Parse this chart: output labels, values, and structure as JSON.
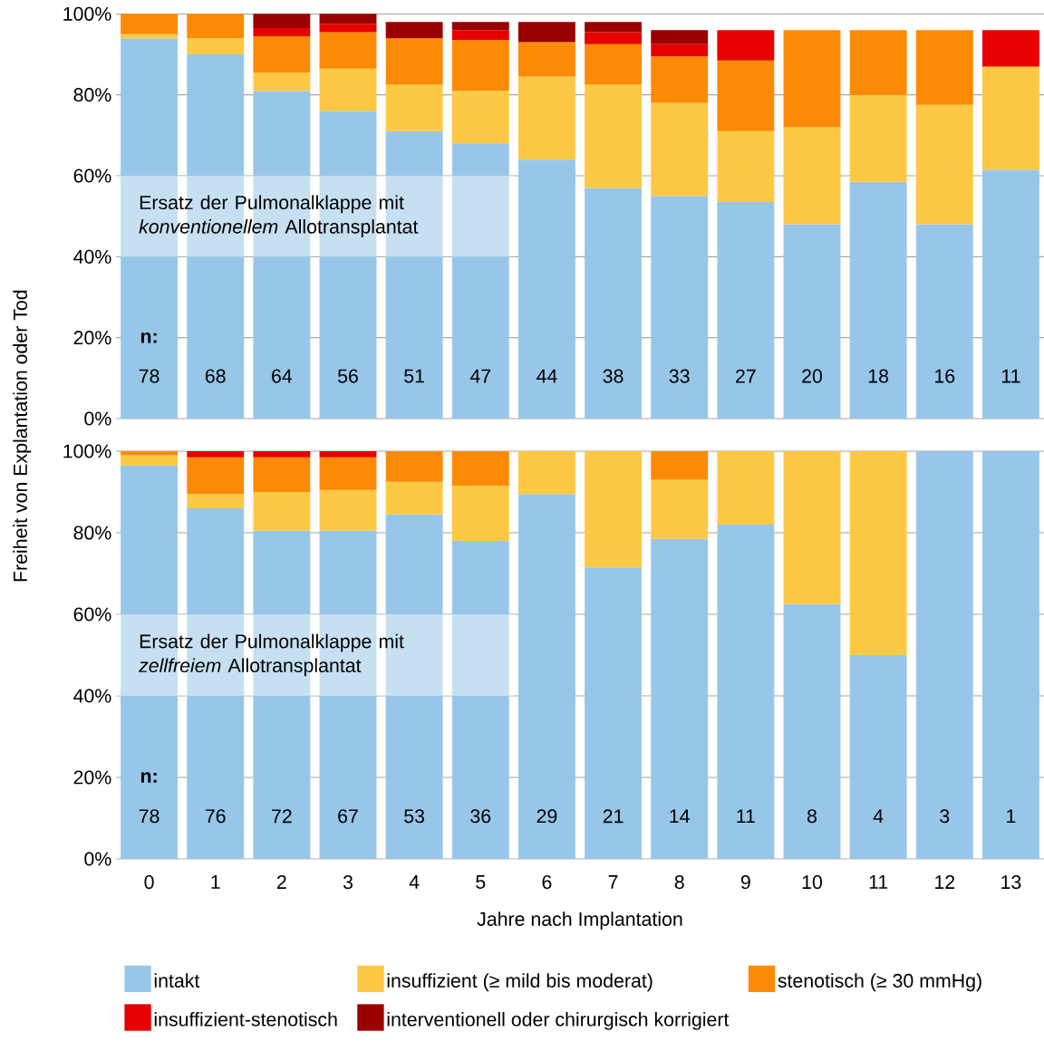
{
  "chart_data": [
    {
      "type": "bar",
      "stacked": true,
      "categories": [
        "0",
        "1",
        "2",
        "3",
        "4",
        "5",
        "6",
        "7",
        "8",
        "9",
        "10",
        "11",
        "12",
        "13"
      ],
      "ylabel": "Freiheit von Explantation oder Tod",
      "ylim": [
        0,
        100
      ],
      "yticks": [
        {
          "value": 0,
          "label": "0%"
        },
        {
          "value": 20,
          "label": "20%"
        },
        {
          "value": 40,
          "label": "40%"
        },
        {
          "value": 60,
          "label": "60%"
        },
        {
          "value": 80,
          "label": "80%"
        },
        {
          "value": 100,
          "label": "100%"
        }
      ],
      "grid": "y",
      "tick_labels": "y",
      "series": [
        {
          "color": "#98c6e8",
          "values": [
            94,
            90,
            81,
            76,
            71,
            68,
            64,
            57,
            55,
            53.5,
            48,
            58.5,
            48,
            61.5
          ]
        },
        {
          "color": "#fdc843",
          "values": [
            1,
            4,
            4.5,
            10.5,
            11.5,
            13,
            20.5,
            25.5,
            23,
            17.5,
            24,
            21.5,
            29.5,
            25.5
          ]
        },
        {
          "color": "#fd8a05",
          "values": [
            5,
            6,
            9,
            9,
            11.5,
            12.5,
            8.5,
            10,
            11.5,
            17.5,
            24,
            16,
            18.5,
            0
          ]
        },
        {
          "color": "#e80000",
          "values": [
            0,
            0,
            2,
            2,
            0,
            2.5,
            0,
            3,
            3,
            7.5,
            0,
            0,
            0,
            9
          ]
        },
        {
          "color": "#9b0000",
          "values": [
            0,
            0,
            3.5,
            2.5,
            4,
            2,
            5,
            2.5,
            3.5,
            0,
            0,
            0,
            0,
            0
          ]
        }
      ],
      "annotations": [
        "Ersatz der Pulmonalklappe mit *konventionellem* Allotransplantat",
        "**n:**",
        "78",
        "68",
        "64",
        "56",
        "51",
        "47",
        "44",
        "38",
        "33",
        "27",
        "20",
        "18",
        "16",
        "11"
      ]
    },
    {
      "type": "bar",
      "stacked": true,
      "categories": [
        "0",
        "1",
        "2",
        "3",
        "4",
        "5",
        "6",
        "7",
        "8",
        "9",
        "10",
        "11",
        "12",
        "13"
      ],
      "xlabel": "Jahre nach Implantation",
      "ylim": [
        0,
        100
      ],
      "yticks": [
        {
          "value": 0,
          "label": "0%"
        },
        {
          "value": 20,
          "label": "20%"
        },
        {
          "value": 40,
          "label": "40%"
        },
        {
          "value": 60,
          "label": "60%"
        },
        {
          "value": 80,
          "label": "80%"
        },
        {
          "value": 100,
          "label": "100%"
        }
      ],
      "grid": "y",
      "legend": "bottom",
      "series": [
        {
          "name": "intakt",
          "color": "#98c6e8",
          "values": [
            96.5,
            86,
            80.5,
            80.5,
            84.5,
            78,
            89.5,
            71.5,
            78.5,
            82,
            62.5,
            50,
            100,
            100
          ]
        },
        {
          "name": "insuffizient (≥ mild bis moderat)",
          "color": "#fdc843",
          "values": [
            2.5,
            3.5,
            9.5,
            10,
            8,
            13.5,
            10.5,
            28.5,
            14.5,
            18,
            37.5,
            50,
            0,
            0
          ]
        },
        {
          "name": "stenotisch (≥ 30 mmHg)",
          "color": "#fd8a05",
          "values": [
            1,
            9,
            8.5,
            8,
            7.5,
            8.5,
            0,
            0,
            7,
            0,
            0,
            0,
            0,
            0
          ]
        },
        {
          "name": "insuffizient-stenotisch",
          "color": "#e80000",
          "values": [
            0,
            1.5,
            1.5,
            1.5,
            0,
            0,
            0,
            0,
            0,
            0,
            0,
            0,
            0,
            0
          ]
        },
        {
          "name": "interventionell oder chirurgisch korrigiert",
          "color": "#9b0000",
          "values": [
            0,
            0,
            0,
            0,
            0,
            0,
            0,
            0,
            0,
            0,
            0,
            0,
            0,
            0
          ]
        }
      ],
      "annotations": [
        "Ersatz der Pulmonalklappe mit *zellfreiem* Allotransplantat",
        "**n:**",
        "78",
        "76",
        "72",
        "67",
        "53",
        "36",
        "29",
        "21",
        "14",
        "11",
        "8",
        "4",
        "3",
        "1"
      ]
    }
  ]
}
